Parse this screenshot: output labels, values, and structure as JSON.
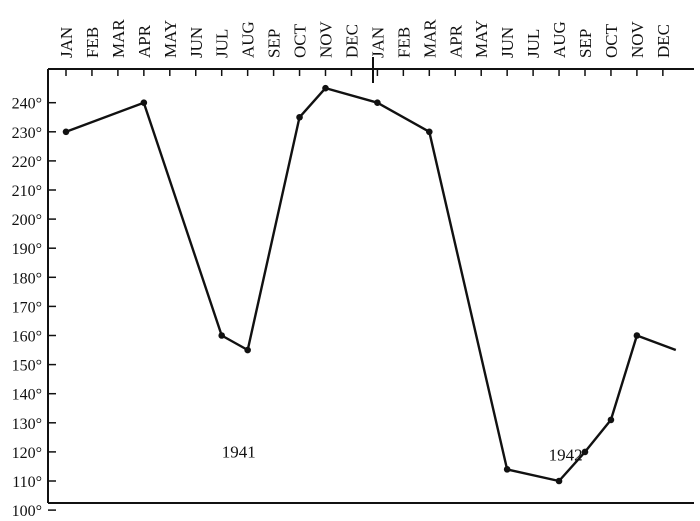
{
  "chart_data": {
    "type": "line",
    "categories": [
      "JAN",
      "FEB",
      "MAR",
      "APR",
      "MAY",
      "JUN",
      "JUL",
      "AUG",
      "SEP",
      "OCT",
      "NOV",
      "DEC",
      "JAN",
      "FEB",
      "MAR",
      "APR",
      "MAY",
      "JUN",
      "JUL",
      "AUG",
      "SEP",
      "OCT",
      "NOV",
      "DEC"
    ],
    "y_ticks": [
      "240°",
      "230°",
      "220°",
      "210°",
      "200°",
      "190°",
      "180°",
      "170°",
      "160°",
      "150°",
      "140°",
      "130°",
      "120°",
      "110°",
      "100°"
    ],
    "ylim": [
      100,
      245
    ],
    "series": [
      {
        "points": [
          {
            "x": 0,
            "y": 230
          },
          {
            "x": 3,
            "y": 240
          },
          {
            "x": 6,
            "y": 160
          },
          {
            "x": 7,
            "y": 155
          },
          {
            "x": 9,
            "y": 235
          },
          {
            "x": 10,
            "y": 245
          },
          {
            "x": 12,
            "y": 240
          },
          {
            "x": 14,
            "y": 230
          },
          {
            "x": 17,
            "y": 114
          },
          {
            "x": 19,
            "y": 110
          },
          {
            "x": 20,
            "y": 120
          },
          {
            "x": 21,
            "y": 131
          },
          {
            "x": 22,
            "y": 160
          },
          {
            "x": 23.5,
            "y": 155
          }
        ]
      }
    ],
    "annotations": [
      {
        "text": "1941",
        "x": 6.0,
        "y": 118
      },
      {
        "text": "1942",
        "x": 18.6,
        "y": 117
      }
    ],
    "grid": false,
    "line_color": "#111111",
    "marker_color": "#111111"
  }
}
